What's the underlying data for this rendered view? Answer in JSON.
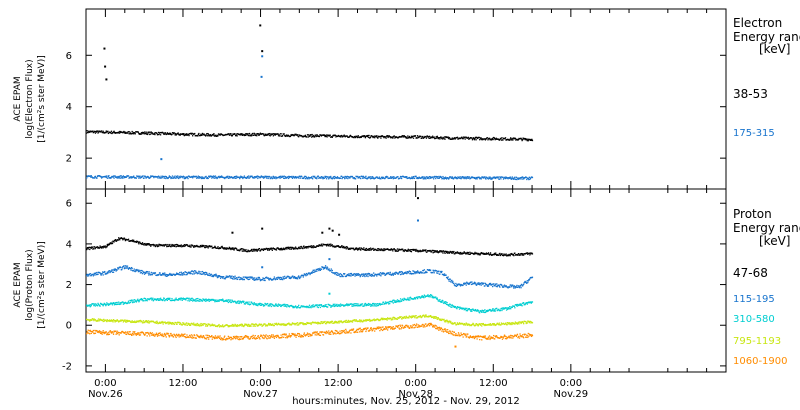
{
  "chart_data": [
    {
      "type": "scatter",
      "title": "",
      "xlabel": "hours:minutes, Nov. 25, 2012 - Nov. 29, 2012",
      "ylabel": "ACE EPAM log(Electron Flux) [1/(cm²s ster MeV)]",
      "ylabel_lines": [
        "ACE EPAM",
        "log(Electron Flux)",
        "[1/(cm²s ster MeV)]"
      ],
      "xlim": [
        -3,
        96
      ],
      "ylim": [
        0.8,
        7.8
      ],
      "yticks": [
        2,
        4,
        6
      ],
      "x_unit": "hours since Nov. 26 00:00",
      "x_ticks": [
        {
          "x": 0,
          "time": "0:00",
          "date": "Nov.26"
        },
        {
          "x": 12,
          "time": "12:00",
          "date": ""
        },
        {
          "x": 24,
          "time": "0:00",
          "date": "Nov.27"
        },
        {
          "x": 36,
          "time": "12:00",
          "date": ""
        },
        {
          "x": 48,
          "time": "0:00",
          "date": "Nov.28"
        },
        {
          "x": 60,
          "time": "12:00",
          "date": ""
        },
        {
          "x": 72,
          "time": "0:00",
          "date": "Nov.29"
        }
      ],
      "legend": {
        "title_lines": [
          "Electron",
          "Energy range",
          "[keV]"
        ],
        "placement": "right"
      },
      "series": [
        {
          "name": "38-53",
          "color": "#000000",
          "x": [
            -3,
            6,
            12,
            18,
            24,
            30,
            36,
            42,
            48,
            54,
            60,
            66
          ],
          "y": [
            3.05,
            3.0,
            2.95,
            2.92,
            2.95,
            2.9,
            2.88,
            2.85,
            2.85,
            2.8,
            2.78,
            2.75
          ],
          "noise": 0.05,
          "spikes": [
            [
              -0.3,
              6.3
            ],
            [
              -0.2,
              5.6
            ],
            [
              0,
              5.1
            ],
            [
              23.8,
              7.2
            ],
            [
              24.1,
              6.2
            ]
          ]
        },
        {
          "name": "175-315",
          "color": "#1874CD",
          "x": [
            -3,
            12,
            24,
            36,
            48,
            60,
            66
          ],
          "y": [
            1.3,
            1.28,
            1.28,
            1.27,
            1.27,
            1.25,
            1.24
          ],
          "noise": 0.05,
          "spikes": [
            [
              8.5,
              2.0
            ],
            [
              24.0,
              5.2
            ],
            [
              24.1,
              6.0
            ]
          ]
        }
      ]
    },
    {
      "type": "scatter",
      "title": "",
      "xlabel": "hours:minutes, Nov. 25, 2012 - Nov. 29, 2012",
      "ylabel": "ACE EPAM log(Proton Flux) [1/(cm²s ster MeV)]",
      "ylabel_lines": [
        "ACE EPAM",
        "log(Proton Flux)",
        "[1/(cm²s ster MeV)]"
      ],
      "xlim": [
        -3,
        96
      ],
      "ylim": [
        -2.3,
        6.7
      ],
      "yticks": [
        -2,
        0,
        2,
        4,
        6
      ],
      "legend": {
        "title_lines": [
          "Proton",
          "Energy range",
          "[keV]"
        ],
        "placement": "right"
      },
      "series": [
        {
          "name": "47-68",
          "color": "#000000",
          "x": [
            -3,
            0,
            2,
            4,
            6,
            8,
            12,
            18,
            22,
            24,
            28,
            32,
            34,
            36,
            38,
            42,
            48,
            54,
            58,
            62,
            66
          ],
          "y": [
            3.8,
            3.9,
            4.3,
            4.2,
            4.0,
            3.95,
            3.95,
            3.85,
            3.7,
            3.75,
            3.8,
            3.9,
            4.0,
            3.9,
            3.8,
            3.75,
            3.7,
            3.6,
            3.55,
            3.5,
            3.55
          ],
          "noise": 0.06,
          "spikes": [
            [
              0.2,
              4.0
            ],
            [
              19.5,
              4.6
            ],
            [
              24.1,
              4.8
            ],
            [
              33.4,
              4.6
            ],
            [
              34.5,
              4.8
            ],
            [
              35,
              4.7
            ],
            [
              36,
              4.5
            ],
            [
              48.2,
              6.3
            ]
          ]
        },
        {
          "name": "115-195",
          "color": "#1874CD",
          "x": [
            -3,
            0,
            3,
            6,
            10,
            14,
            18,
            24,
            30,
            34,
            36,
            40,
            46,
            50,
            52,
            54,
            56,
            60,
            64,
            66
          ],
          "y": [
            2.5,
            2.6,
            2.9,
            2.6,
            2.5,
            2.65,
            2.4,
            2.3,
            2.4,
            2.9,
            2.5,
            2.5,
            2.6,
            2.7,
            2.6,
            2.0,
            2.1,
            2.0,
            1.9,
            2.4
          ],
          "noise": 0.08,
          "spikes": [
            [
              24.1,
              2.9
            ],
            [
              34.5,
              3.3
            ],
            [
              48.2,
              5.2
            ]
          ]
        },
        {
          "name": "310-580",
          "color": "#00CED1",
          "x": [
            -3,
            2,
            6,
            12,
            18,
            24,
            30,
            36,
            42,
            48,
            50,
            54,
            58,
            62,
            66
          ],
          "y": [
            1.0,
            1.1,
            1.3,
            1.3,
            1.25,
            1.05,
            0.95,
            1.0,
            1.05,
            1.4,
            1.5,
            0.9,
            0.7,
            0.85,
            1.2
          ],
          "noise": 0.07,
          "spikes": [
            [
              34.5,
              1.6
            ]
          ]
        },
        {
          "name": "795-1193",
          "color": "#C8E612",
          "x": [
            -3,
            6,
            12,
            18,
            24,
            30,
            36,
            42,
            48,
            50,
            54,
            58,
            62,
            66
          ],
          "y": [
            0.3,
            0.2,
            0.1,
            0.0,
            0.05,
            0.1,
            0.2,
            0.3,
            0.45,
            0.5,
            0.1,
            0.05,
            0.1,
            0.2
          ],
          "noise": 0.06,
          "spikes": []
        },
        {
          "name": "1060-1900",
          "color": "#FF8C00",
          "x": [
            -3,
            6,
            12,
            18,
            24,
            30,
            36,
            42,
            48,
            50,
            54,
            58,
            62,
            66
          ],
          "y": [
            -0.3,
            -0.4,
            -0.5,
            -0.6,
            -0.55,
            -0.45,
            -0.3,
            -0.15,
            0.0,
            0.05,
            -0.4,
            -0.6,
            -0.55,
            -0.45
          ],
          "noise": 0.1,
          "spikes": [
            [
              54,
              -1.0
            ]
          ]
        }
      ]
    }
  ]
}
